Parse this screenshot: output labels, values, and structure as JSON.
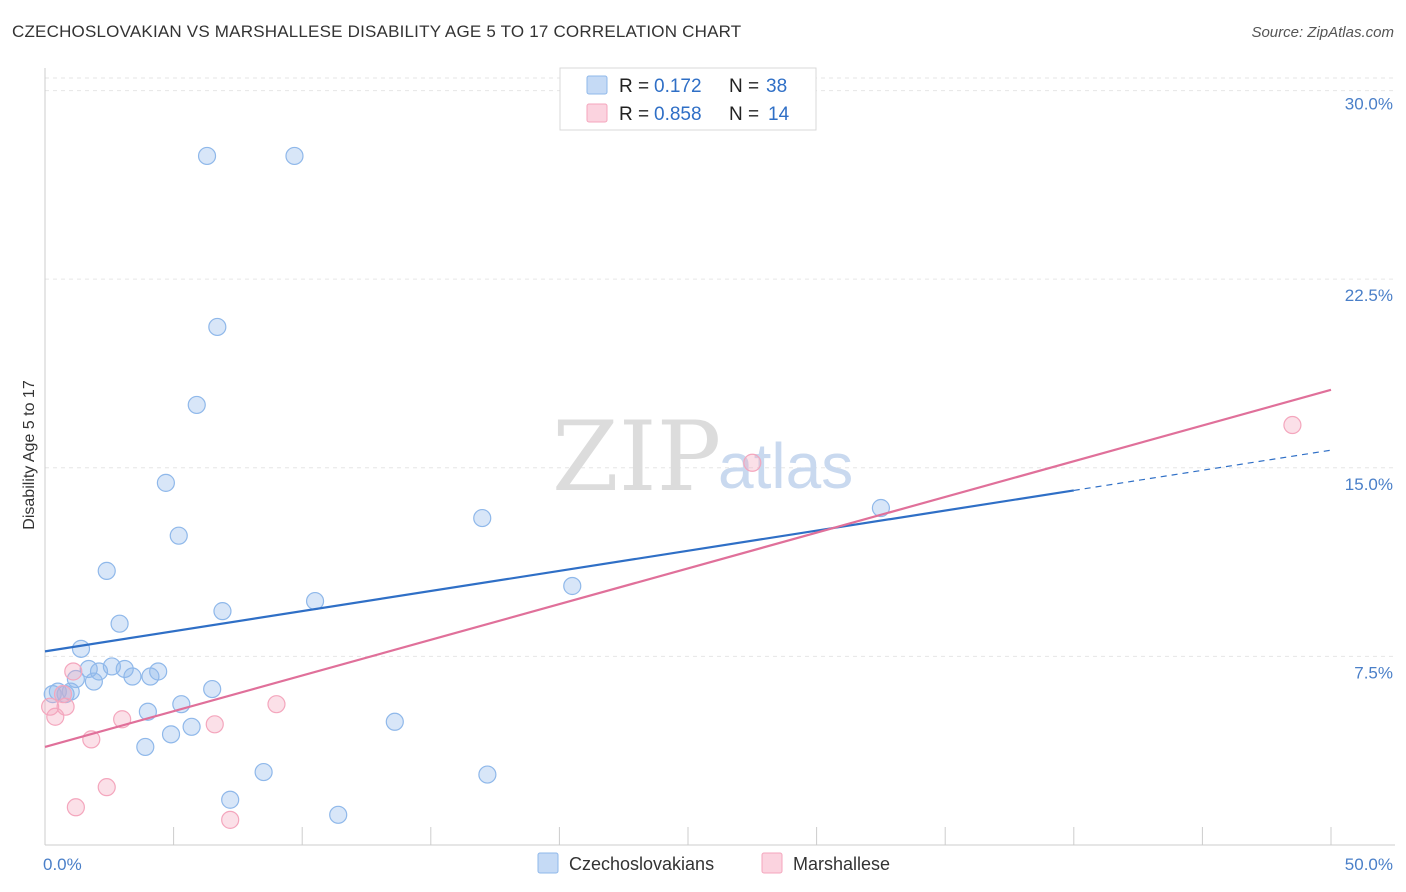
{
  "title": "CZECHOSLOVAKIAN VS MARSHALLESE DISABILITY AGE 5 TO 17 CORRELATION CHART",
  "source": "Source: ZipAtlas.com",
  "watermark": {
    "zip": "ZIP",
    "atlas": "atlas"
  },
  "chart_data": {
    "type": "scatter",
    "title": "CZECHOSLOVAKIAN VS MARSHALLESE DISABILITY AGE 5 TO 17 CORRELATION CHART",
    "xlabel": "",
    "ylabel": "Disability Age 5 to 17",
    "xlim": [
      0,
      50
    ],
    "ylim": [
      0,
      30.5
    ],
    "x_tick_labels": [
      "0.0%",
      "50.0%"
    ],
    "y_ticks": [
      7.5,
      15.0,
      22.5,
      30.0
    ],
    "y_tick_labels": [
      "7.5%",
      "15.0%",
      "22.5%",
      "30.0%"
    ],
    "grid": true,
    "legend": [
      {
        "name": "Czechoslovakians",
        "r_label": "R =",
        "r": "0.172",
        "n_label": "N =",
        "n": "38",
        "color": "#8fb8ea"
      },
      {
        "name": "Marshallese",
        "r_label": "R =",
        "r": "0.858",
        "n_label": "N =",
        "n": "14",
        "color": "#f4a6bd"
      }
    ],
    "series": [
      {
        "name": "Czechoslovakians",
        "color": "#8fb8ea",
        "line_color": "#2f6fc6",
        "trend": {
          "x0": 0,
          "y0": 7.7,
          "x1": 40,
          "y1": 14.1,
          "dash_x1": 50,
          "dash_y1": 15.7
        },
        "points": [
          [
            0.3,
            6.0
          ],
          [
            0.5,
            6.1
          ],
          [
            0.8,
            6.0
          ],
          [
            1.0,
            6.1
          ],
          [
            1.2,
            6.6
          ],
          [
            1.4,
            7.8
          ],
          [
            1.7,
            7.0
          ],
          [
            1.9,
            6.5
          ],
          [
            2.1,
            6.9
          ],
          [
            2.4,
            10.9
          ],
          [
            2.6,
            7.1
          ],
          [
            2.9,
            8.8
          ],
          [
            3.1,
            7.0
          ],
          [
            3.4,
            6.7
          ],
          [
            3.9,
            3.9
          ],
          [
            4.0,
            5.3
          ],
          [
            4.1,
            6.7
          ],
          [
            4.4,
            6.9
          ],
          [
            4.7,
            14.4
          ],
          [
            4.9,
            4.4
          ],
          [
            5.2,
            12.3
          ],
          [
            5.3,
            5.6
          ],
          [
            5.7,
            4.7
          ],
          [
            5.9,
            17.5
          ],
          [
            6.3,
            27.4
          ],
          [
            6.5,
            6.2
          ],
          [
            6.7,
            20.6
          ],
          [
            6.9,
            9.3
          ],
          [
            7.2,
            1.8
          ],
          [
            8.5,
            2.9
          ],
          [
            9.7,
            27.4
          ],
          [
            10.5,
            9.7
          ],
          [
            11.4,
            1.2
          ],
          [
            13.6,
            4.9
          ],
          [
            17.0,
            13.0
          ],
          [
            17.2,
            2.8
          ],
          [
            20.5,
            10.3
          ],
          [
            32.5,
            13.4
          ]
        ]
      },
      {
        "name": "Marshallese",
        "color": "#f4a6bd",
        "line_color": "#e0709a",
        "trend": {
          "x0": 0,
          "y0": 3.9,
          "x1": 50,
          "y1": 18.1
        },
        "points": [
          [
            0.2,
            5.5
          ],
          [
            0.4,
            5.1
          ],
          [
            0.7,
            6.0
          ],
          [
            0.8,
            5.5
          ],
          [
            1.1,
            6.9
          ],
          [
            1.2,
            1.5
          ],
          [
            1.8,
            4.2
          ],
          [
            2.4,
            2.3
          ],
          [
            3.0,
            5.0
          ],
          [
            6.6,
            4.8
          ],
          [
            7.2,
            1.0
          ],
          [
            9.0,
            5.6
          ],
          [
            27.5,
            15.2
          ],
          [
            48.5,
            16.7
          ]
        ]
      }
    ]
  }
}
